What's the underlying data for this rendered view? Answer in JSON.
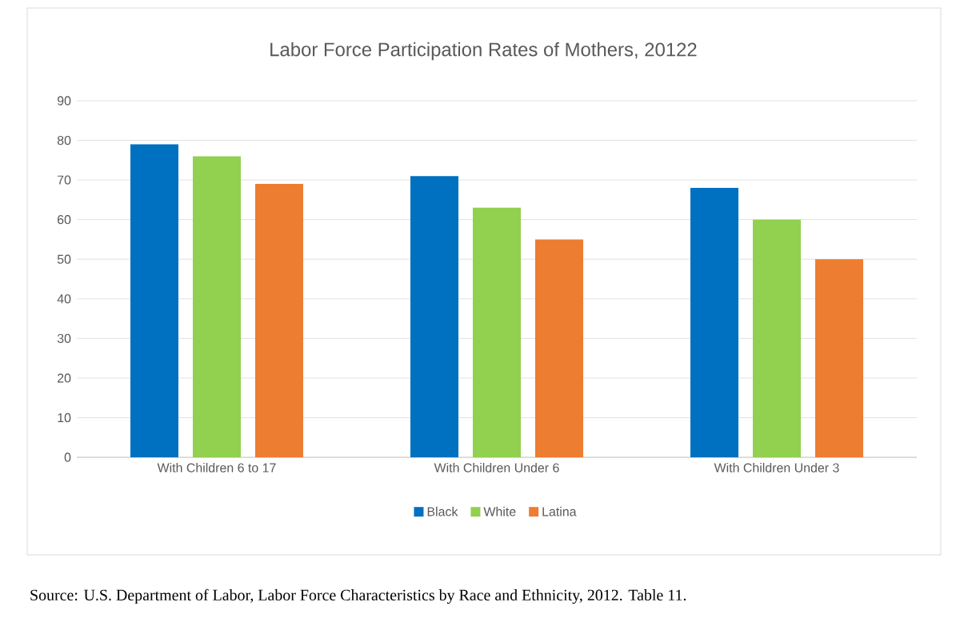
{
  "chart_data": {
    "type": "bar",
    "title": "Labor Force Participation Rates of Mothers, 20122",
    "categories": [
      "With Children 6 to 17",
      "With Children Under 6",
      "With Children Under 3"
    ],
    "series": [
      {
        "name": "Black",
        "color": "#0070c0",
        "values": [
          79,
          71,
          68
        ]
      },
      {
        "name": "White",
        "color": "#92d050",
        "values": [
          76,
          63,
          60
        ]
      },
      {
        "name": "Latina",
        "color": "#ed7d31",
        "values": [
          69,
          55,
          50
        ]
      }
    ],
    "ylim": [
      0,
      90
    ],
    "yticks": [
      0,
      10,
      20,
      30,
      40,
      50,
      60,
      70,
      80,
      90
    ],
    "grid": "y",
    "legend": "bottom",
    "annotations": [
      "Source:  U.S. Department of Labor, Labor Force Characteristics by Race and Ethnicity, 2012. Table 11."
    ]
  }
}
